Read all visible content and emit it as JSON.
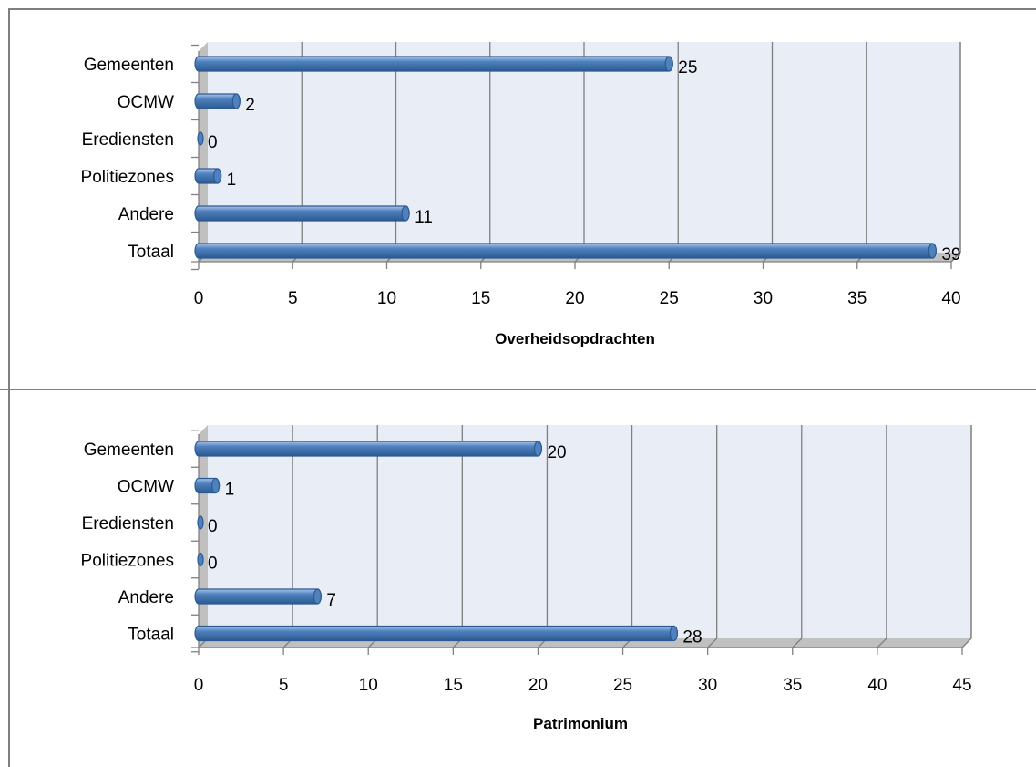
{
  "chart_data": [
    {
      "type": "bar",
      "orientation": "horizontal",
      "categories": [
        "Gemeenten",
        "OCMW",
        "Erediensten",
        "Politiezones",
        "Andere",
        "Totaal"
      ],
      "values": [
        25,
        2,
        0,
        1,
        11,
        39
      ],
      "xlabel": "Overheidsopdrachten",
      "ylabel": "",
      "xlim": [
        0,
        40
      ],
      "xticks": [
        "0",
        "5",
        "10",
        "15",
        "20",
        "25",
        "30",
        "35",
        "40"
      ],
      "data_labels": [
        "25",
        "2",
        "0",
        "1",
        "11",
        "39"
      ],
      "grid": true,
      "legend": "none",
      "colors": {
        "bar": "#4f81bd",
        "bar_dark": "#2c5a93",
        "bar_light": "#a9c4ea",
        "plot_bg": "#e9edf6",
        "wall_side": "#c0c0c0",
        "grid": "#808080"
      }
    },
    {
      "type": "bar",
      "orientation": "horizontal",
      "categories": [
        "Gemeenten",
        "OCMW",
        "Erediensten",
        "Politiezones",
        "Andere",
        "Totaal"
      ],
      "values": [
        20,
        1,
        0,
        0,
        7,
        28
      ],
      "xlabel": "Patrimonium",
      "ylabel": "",
      "xlim": [
        0,
        45
      ],
      "xticks": [
        "0",
        "5",
        "10",
        "15",
        "20",
        "25",
        "30",
        "35",
        "40",
        "45"
      ],
      "data_labels": [
        "20",
        "1",
        "0",
        "0",
        "7",
        "28"
      ],
      "grid": true,
      "legend": "none",
      "colors": {
        "bar": "#4f81bd",
        "bar_dark": "#2c5a93",
        "bar_light": "#a9c4ea",
        "plot_bg": "#e9edf6",
        "wall_side": "#c0c0c0",
        "grid": "#808080"
      }
    }
  ]
}
